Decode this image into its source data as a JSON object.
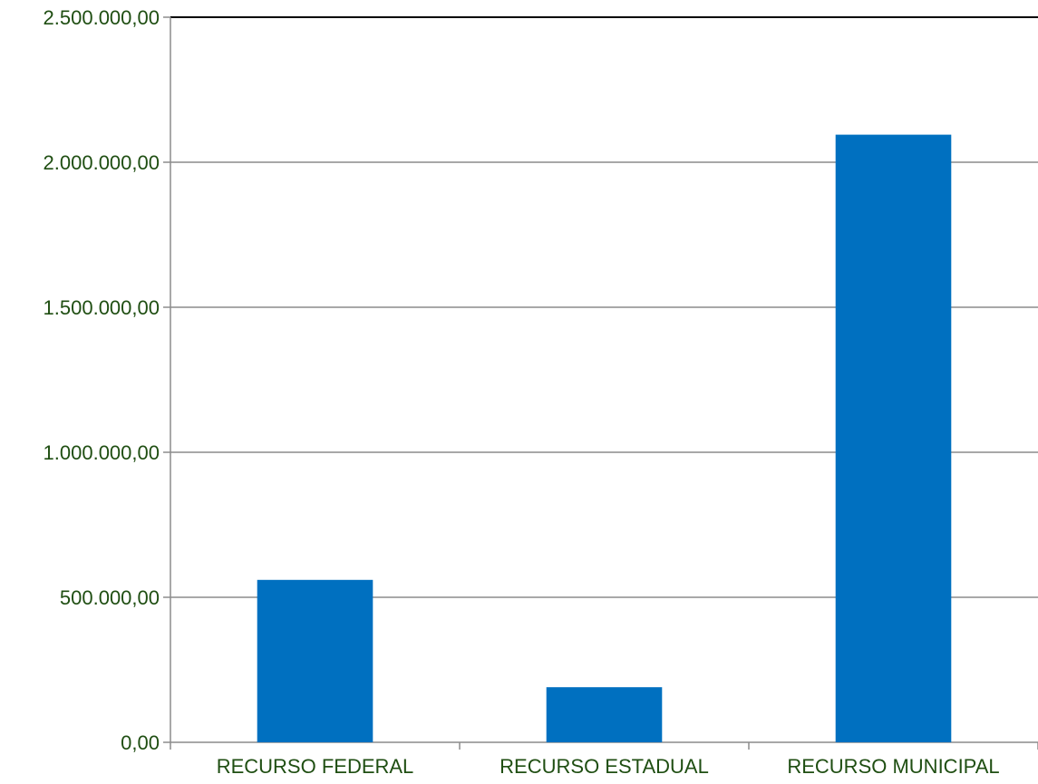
{
  "chart_data": {
    "type": "bar",
    "categories": [
      "RECURSO FEDERAL",
      "RECURSO ESTADUAL",
      "RECURSO MUNICIPAL"
    ],
    "values": [
      560000,
      190000,
      2095000
    ],
    "ylim": [
      0,
      2500000
    ],
    "y_ticks": [
      0,
      500000,
      1000000,
      1500000,
      2000000,
      2500000
    ],
    "y_tick_labels": [
      "0,00",
      "500.000,00",
      "1.000.000,00",
      "1.500.000,00",
      "2.000.000,00",
      "2.500.000,00"
    ],
    "grid": true,
    "bar_color": "#0070c0",
    "text_color": "#1f4e12",
    "title": "",
    "xlabel": "",
    "ylabel": ""
  }
}
